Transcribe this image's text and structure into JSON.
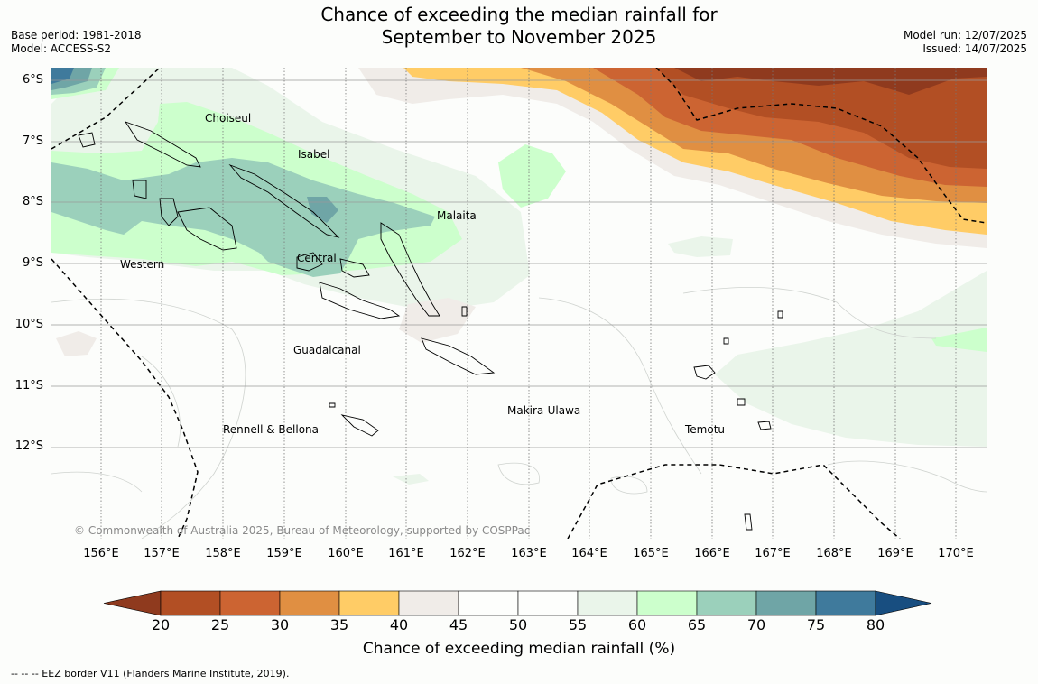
{
  "title": {
    "line1": "Chance of exceeding the median rainfall for",
    "line2": "September to November 2025"
  },
  "meta_left": {
    "base_period": "Base period: 1981-2018",
    "model": "Model: ACCESS-S2"
  },
  "meta_right": {
    "model_run": "Model run: 12/07/2025",
    "issued": "Issued: 14/07/2025"
  },
  "x_ticks": [
    "156°E",
    "157°E",
    "158°E",
    "159°E",
    "160°E",
    "161°E",
    "162°E",
    "163°E",
    "164°E",
    "165°E",
    "166°E",
    "167°E",
    "168°E",
    "169°E",
    "170°E"
  ],
  "y_ticks": [
    "6°S",
    "7°S",
    "8°S",
    "9°S",
    "10°S",
    "11°S",
    "12°S"
  ],
  "regions": [
    {
      "name": "Choiseul",
      "key": "choiseul"
    },
    {
      "name": "Isabel",
      "key": "isabel"
    },
    {
      "name": "Malaita",
      "key": "malaita"
    },
    {
      "name": "Western",
      "key": "western"
    },
    {
      "name": "Central",
      "key": "central"
    },
    {
      "name": "Guadalcanal",
      "key": "guadalcanal"
    },
    {
      "name": "Makira-Ulawa",
      "key": "makira"
    },
    {
      "name": "Rennell & Bellona",
      "key": "rennell"
    },
    {
      "name": "Temotu",
      "key": "temotu"
    }
  ],
  "copyright": "© Commonwealth of Australia 2025, Bureau of Meteorology, supported by COSPPac",
  "colorbar": {
    "title": "Chance of exceeding median rainfall (%)",
    "ticks": [
      "20",
      "25",
      "30",
      "35",
      "40",
      "45",
      "50",
      "55",
      "60",
      "65",
      "70",
      "75",
      "80"
    ],
    "colors": {
      "below20": "#8f3a1e",
      "c20_25": "#b24f24",
      "c25_30": "#cc6432",
      "c30_35": "#e08f42",
      "c35_40": "#ffcc66",
      "c40_45": "#f0ece8",
      "c45_50": "#fdfefc",
      "c50_55": "#fdfefc",
      "c55_60": "#eaf5ea",
      "c60_65": "#ccffcc",
      "c65_70": "#9bd0bb",
      "c70_75": "#6fa5a6",
      "c75_80": "#3f7a9c",
      "above80": "#184e80"
    }
  },
  "footer": "--  --  -- EEZ border V11 (Flanders Marine Institute, 2019)."
}
